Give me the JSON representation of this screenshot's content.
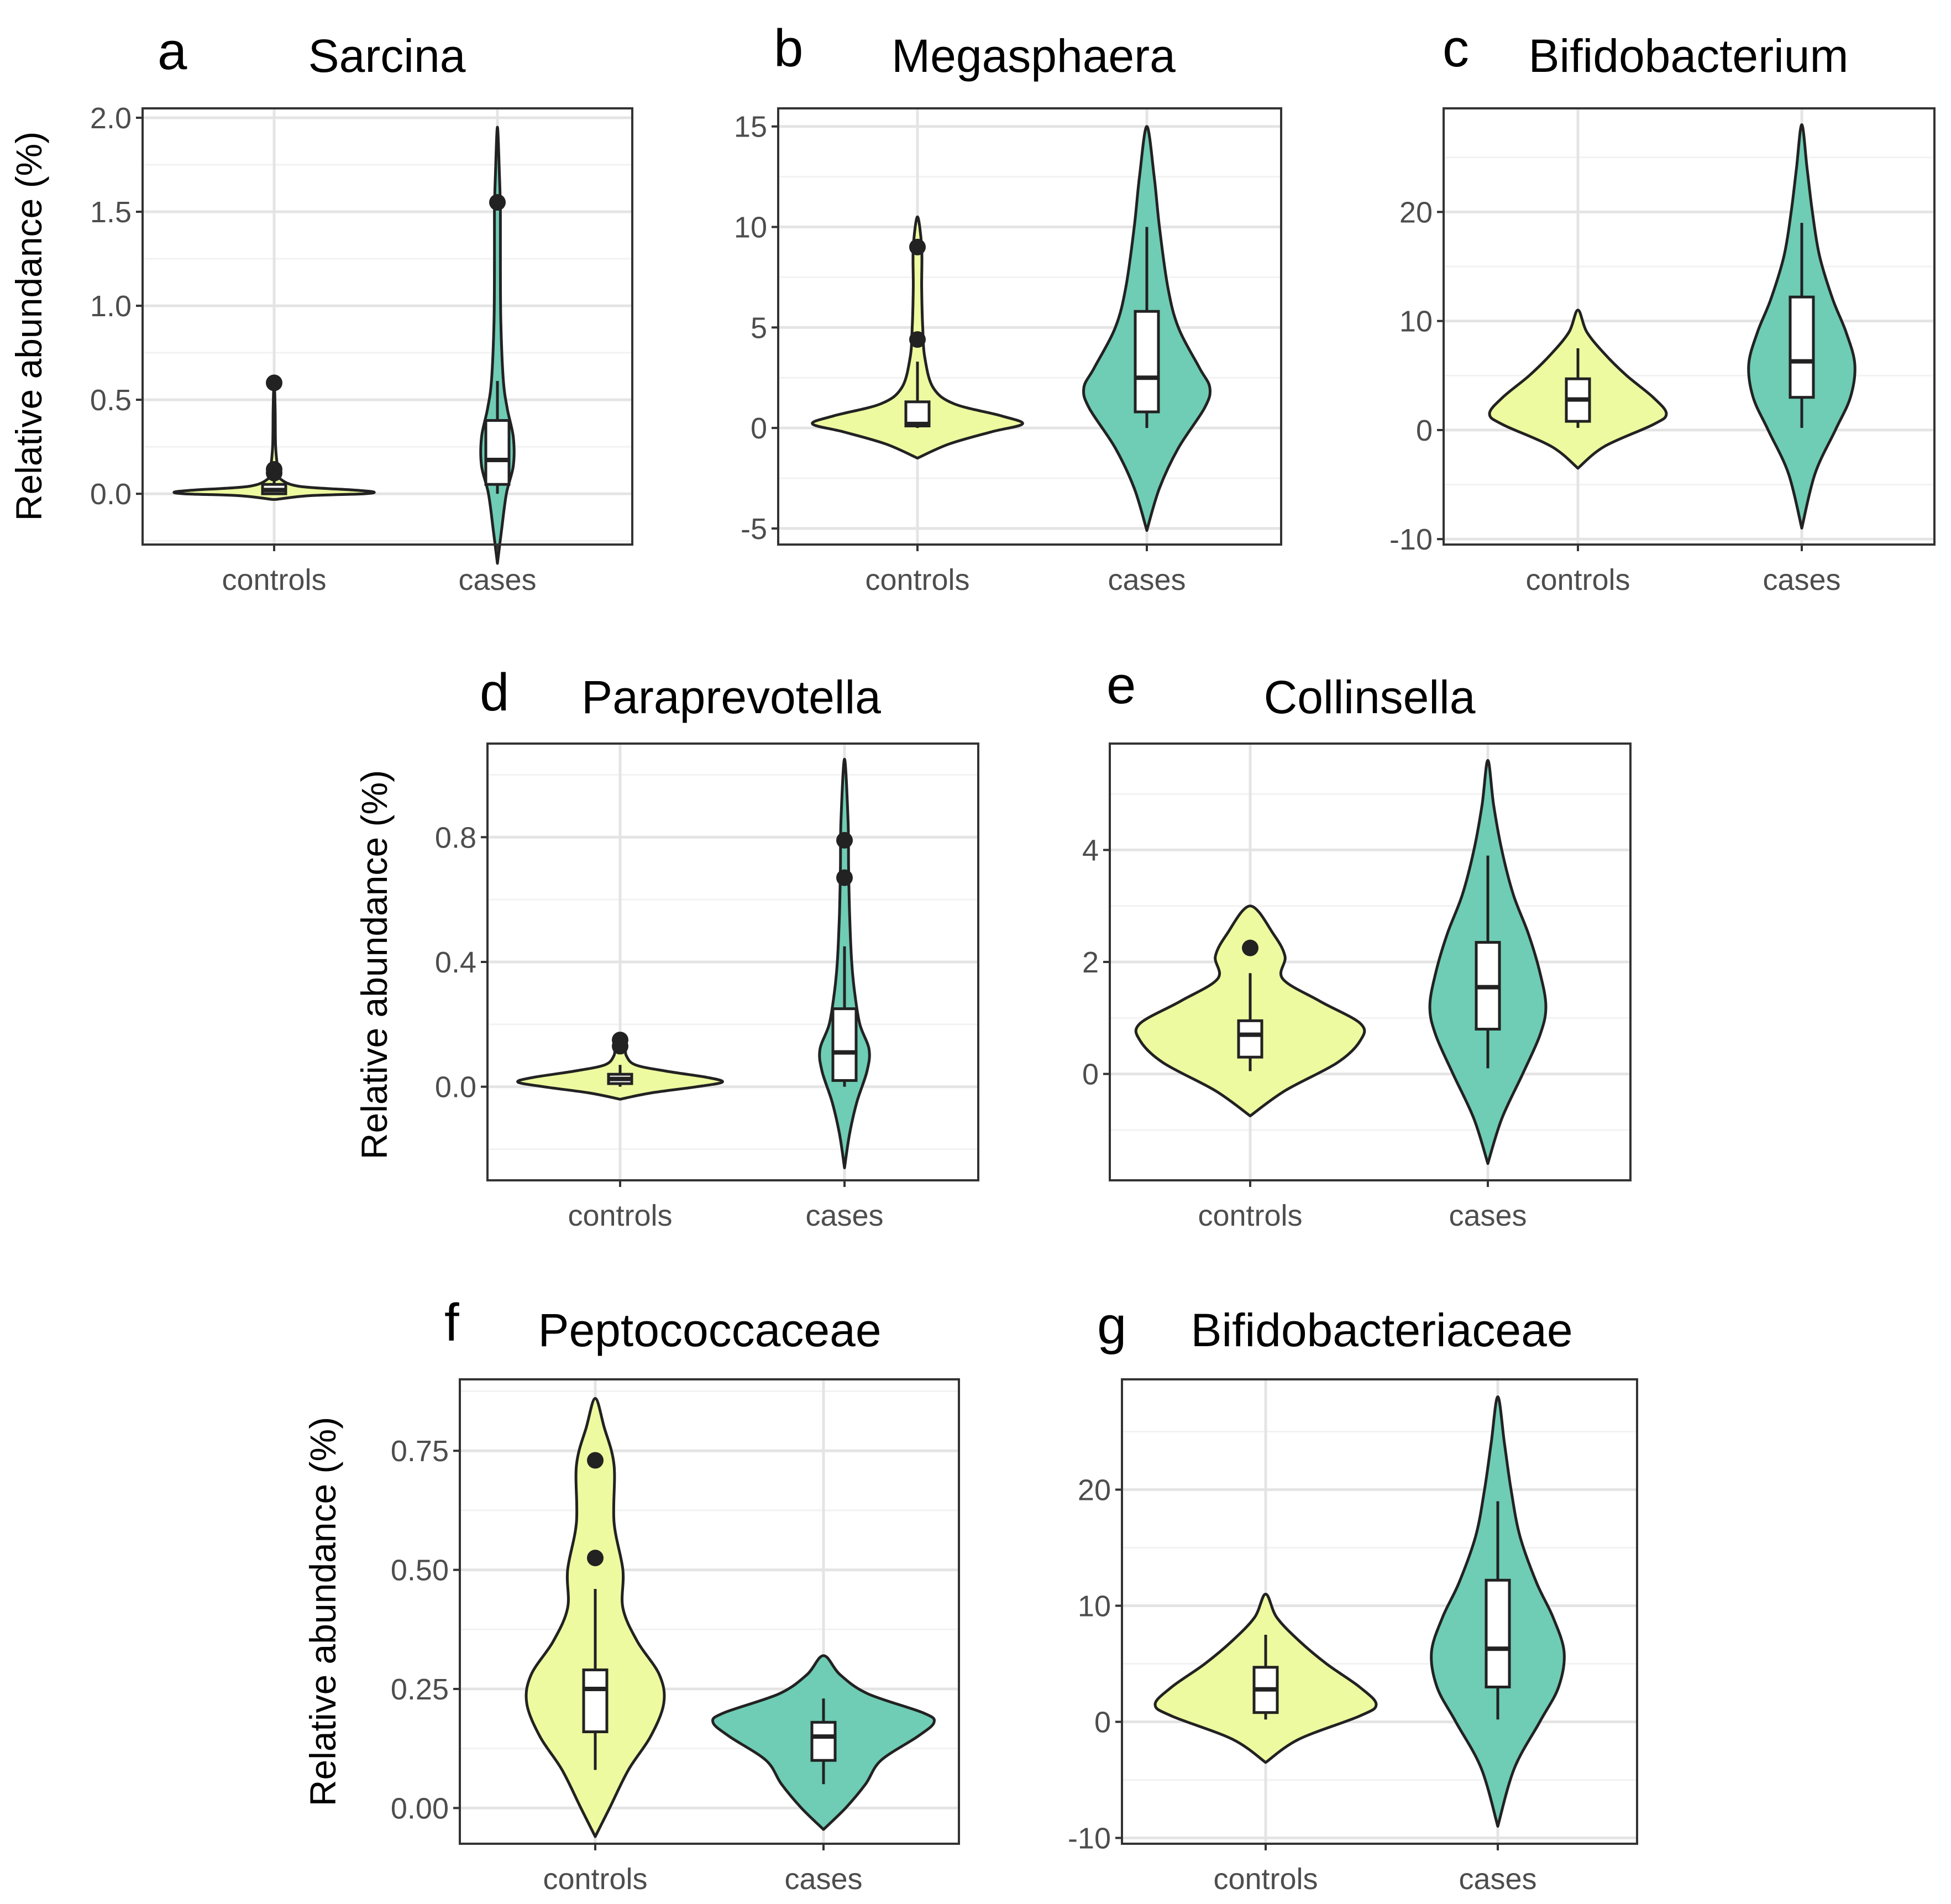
{
  "figure": {
    "colors": {
      "controls": "#eefaa0",
      "cases": "#6fccb5",
      "outline": "#222222",
      "grid_major": "#e4e4e4",
      "grid_minor": "#f2f2f2",
      "box_fill": "#ffffff"
    }
  },
  "chart_data": [
    {
      "type": "violin",
      "letter": "a",
      "title": "Sarcina",
      "ylabel": "Relative abundance (%)",
      "ylim": [
        -0.27,
        2.05
      ],
      "yticks": [
        0.0,
        0.5,
        1.0,
        1.5,
        2.0
      ],
      "ytick_labels": [
        "0.0",
        "0.5",
        "1.0",
        "1.5",
        "2.0"
      ],
      "categories": [
        "controls",
        "cases"
      ],
      "series": [
        {
          "name": "controls",
          "profile": [
            [
              -0.03,
              0.02
            ],
            [
              -0.01,
              0.35
            ],
            [
              0.0,
              0.9
            ],
            [
              0.01,
              1.0
            ],
            [
              0.02,
              0.8
            ],
            [
              0.04,
              0.25
            ],
            [
              0.08,
              0.06
            ],
            [
              0.12,
              0.04
            ],
            [
              0.25,
              0.015
            ],
            [
              0.45,
              0.01
            ],
            [
              0.6,
              0.0
            ]
          ],
          "box": {
            "q1": 0.0,
            "median": 0.02,
            "q3": 0.05,
            "whisker_low": 0.0,
            "whisker_high": 0.1
          },
          "outliers": [
            0.11,
            0.13,
            0.59
          ]
        },
        {
          "name": "cases",
          "profile": [
            [
              -0.37,
              0.0
            ],
            [
              -0.2,
              0.04
            ],
            [
              0.0,
              0.09
            ],
            [
              0.15,
              0.16
            ],
            [
              0.3,
              0.16
            ],
            [
              0.45,
              0.1
            ],
            [
              0.6,
              0.06
            ],
            [
              0.9,
              0.035
            ],
            [
              1.2,
              0.03
            ],
            [
              1.5,
              0.03
            ],
            [
              1.7,
              0.02
            ],
            [
              1.95,
              0.0
            ]
          ],
          "box": {
            "q1": 0.05,
            "median": 0.18,
            "q3": 0.39,
            "whisker_low": 0.0,
            "whisker_high": 0.6
          },
          "outliers": [
            1.55
          ]
        }
      ]
    },
    {
      "type": "violin",
      "letter": "b",
      "title": "Megasphaera",
      "ylabel": "",
      "ylim": [
        -5.8,
        15.9
      ],
      "yticks": [
        -5,
        0,
        5,
        10,
        15
      ],
      "ytick_labels": [
        "-5",
        "0",
        "5",
        "10",
        "15"
      ],
      "categories": [
        "controls",
        "cases"
      ],
      "series": [
        {
          "name": "controls",
          "profile": [
            [
              -1.5,
              0.0
            ],
            [
              -0.8,
              0.3
            ],
            [
              -0.2,
              0.7
            ],
            [
              0.2,
              1.0
            ],
            [
              0.6,
              0.8
            ],
            [
              1.2,
              0.35
            ],
            [
              2.0,
              0.15
            ],
            [
              3.5,
              0.07
            ],
            [
              5.0,
              0.05
            ],
            [
              7.0,
              0.04
            ],
            [
              9.0,
              0.04
            ],
            [
              10.5,
              0.0
            ]
          ],
          "box": {
            "q1": 0.1,
            "median": 0.2,
            "q3": 1.3,
            "whisker_low": 0.0,
            "whisker_high": 3.3
          },
          "outliers": [
            4.4,
            9.0
          ]
        },
        {
          "name": "cases",
          "profile": [
            [
              -5.1,
              0.0
            ],
            [
              -3.0,
              0.12
            ],
            [
              -1.0,
              0.3
            ],
            [
              1.0,
              0.55
            ],
            [
              2.0,
              0.6
            ],
            [
              3.0,
              0.5
            ],
            [
              5.0,
              0.3
            ],
            [
              7.0,
              0.2
            ],
            [
              10.0,
              0.12
            ],
            [
              12.5,
              0.07
            ],
            [
              15.0,
              0.0
            ]
          ],
          "box": {
            "q1": 0.8,
            "median": 2.5,
            "q3": 5.8,
            "whisker_low": 0.0,
            "whisker_high": 10.0
          },
          "outliers": []
        }
      ]
    },
    {
      "type": "violin",
      "letter": "c",
      "title": "Bifidobacterium",
      "ylabel": "",
      "ylim": [
        -10.5,
        29.5
      ],
      "yticks": [
        -10,
        0,
        10,
        20
      ],
      "ytick_labels": [
        "-10",
        "0",
        "10",
        "20"
      ],
      "categories": [
        "controls",
        "cases"
      ],
      "series": [
        {
          "name": "controls",
          "profile": [
            [
              -3.5,
              0.0
            ],
            [
              -1.5,
              0.3
            ],
            [
              0.5,
              0.85
            ],
            [
              1.5,
              1.0
            ],
            [
              3.0,
              0.85
            ],
            [
              5.0,
              0.55
            ],
            [
              7.0,
              0.3
            ],
            [
              9.0,
              0.1
            ],
            [
              11.0,
              0.0
            ]
          ],
          "box": {
            "q1": 0.8,
            "median": 2.8,
            "q3": 4.7,
            "whisker_low": 0.2,
            "whisker_high": 7.5
          },
          "outliers": []
        },
        {
          "name": "cases",
          "profile": [
            [
              -9.0,
              0.0
            ],
            [
              -4.0,
              0.15
            ],
            [
              0.0,
              0.38
            ],
            [
              3.0,
              0.55
            ],
            [
              6.0,
              0.6
            ],
            [
              9.0,
              0.5
            ],
            [
              12.0,
              0.35
            ],
            [
              16.0,
              0.2
            ],
            [
              20.0,
              0.12
            ],
            [
              24.0,
              0.06
            ],
            [
              28.0,
              0.0
            ]
          ],
          "box": {
            "q1": 3.0,
            "median": 6.3,
            "q3": 12.2,
            "whisker_low": 0.2,
            "whisker_high": 19.0
          },
          "outliers": []
        }
      ]
    },
    {
      "type": "violin",
      "letter": "d",
      "title": "Paraprevotella",
      "ylabel": "Relative abundance (%)",
      "ylim": [
        -0.3,
        1.1
      ],
      "yticks": [
        0.0,
        0.4,
        0.8
      ],
      "ytick_labels": [
        "0.0",
        "0.4",
        "0.8"
      ],
      "categories": [
        "controls",
        "cases"
      ],
      "series": [
        {
          "name": "controls",
          "profile": [
            [
              -0.04,
              0.0
            ],
            [
              -0.02,
              0.3
            ],
            [
              0.0,
              0.75
            ],
            [
              0.015,
              1.0
            ],
            [
              0.03,
              0.85
            ],
            [
              0.05,
              0.45
            ],
            [
              0.07,
              0.15
            ],
            [
              0.1,
              0.06
            ],
            [
              0.13,
              0.05
            ],
            [
              0.16,
              0.0
            ]
          ],
          "box": {
            "q1": 0.01,
            "median": 0.025,
            "q3": 0.04,
            "whisker_low": 0.0,
            "whisker_high": 0.07
          },
          "outliers": [
            0.13,
            0.15
          ]
        },
        {
          "name": "cases",
          "profile": [
            [
              -0.26,
              0.0
            ],
            [
              -0.15,
              0.05
            ],
            [
              -0.05,
              0.12
            ],
            [
              0.05,
              0.22
            ],
            [
              0.12,
              0.24
            ],
            [
              0.2,
              0.15
            ],
            [
              0.3,
              0.1
            ],
            [
              0.4,
              0.07
            ],
            [
              0.55,
              0.05
            ],
            [
              0.7,
              0.04
            ],
            [
              0.85,
              0.035
            ],
            [
              1.05,
              0.0
            ]
          ],
          "box": {
            "q1": 0.02,
            "median": 0.11,
            "q3": 0.25,
            "whisker_low": 0.0,
            "whisker_high": 0.45
          },
          "outliers": [
            0.67,
            0.79
          ]
        }
      ]
    },
    {
      "type": "violin",
      "letter": "e",
      "title": "Collinsella",
      "ylabel": "",
      "ylim": [
        -1.9,
        5.9
      ],
      "yticks": [
        0,
        2,
        4
      ],
      "ytick_labels": [
        "0",
        "2",
        "4"
      ],
      "categories": [
        "controls",
        "cases"
      ],
      "series": [
        {
          "name": "controls",
          "profile": [
            [
              -0.75,
              0.0
            ],
            [
              -0.3,
              0.3
            ],
            [
              0.2,
              0.75
            ],
            [
              0.6,
              0.95
            ],
            [
              0.9,
              0.95
            ],
            [
              1.3,
              0.6
            ],
            [
              1.7,
              0.28
            ],
            [
              2.1,
              0.3
            ],
            [
              2.5,
              0.2
            ],
            [
              3.0,
              0.0
            ]
          ],
          "box": {
            "q1": 0.3,
            "median": 0.7,
            "q3": 0.95,
            "whisker_low": 0.05,
            "whisker_high": 1.8
          },
          "outliers": [
            2.25
          ]
        },
        {
          "name": "cases",
          "profile": [
            [
              -1.6,
              0.0
            ],
            [
              -0.8,
              0.12
            ],
            [
              0.0,
              0.3
            ],
            [
              0.7,
              0.45
            ],
            [
              1.2,
              0.5
            ],
            [
              1.8,
              0.45
            ],
            [
              2.5,
              0.35
            ],
            [
              3.2,
              0.22
            ],
            [
              4.0,
              0.12
            ],
            [
              4.8,
              0.05
            ],
            [
              5.6,
              0.0
            ]
          ],
          "box": {
            "q1": 0.8,
            "median": 1.55,
            "q3": 2.35,
            "whisker_low": 0.1,
            "whisker_high": 3.9
          },
          "outliers": []
        }
      ]
    },
    {
      "type": "violin",
      "letter": "f",
      "title": "Peptococcaceae",
      "ylabel": "Relative abundance (%)",
      "ylim": [
        -0.075,
        0.9
      ],
      "yticks": [
        0.0,
        0.25,
        0.5,
        0.75
      ],
      "ytick_labels": [
        "0.00",
        "0.25",
        "0.50",
        "0.75"
      ],
      "categories": [
        "controls",
        "cases"
      ],
      "series": [
        {
          "name": "controls",
          "profile": [
            [
              -0.06,
              0.0
            ],
            [
              0.0,
              0.13
            ],
            [
              0.08,
              0.3
            ],
            [
              0.15,
              0.5
            ],
            [
              0.22,
              0.62
            ],
            [
              0.28,
              0.58
            ],
            [
              0.35,
              0.38
            ],
            [
              0.42,
              0.25
            ],
            [
              0.5,
              0.25
            ],
            [
              0.6,
              0.17
            ],
            [
              0.72,
              0.17
            ],
            [
              0.8,
              0.08
            ],
            [
              0.86,
              0.0
            ]
          ],
          "box": {
            "q1": 0.16,
            "median": 0.25,
            "q3": 0.29,
            "whisker_low": 0.08,
            "whisker_high": 0.46
          },
          "outliers": [
            0.525,
            0.73
          ]
        },
        {
          "name": "cases",
          "profile": [
            [
              -0.045,
              0.0
            ],
            [
              0.0,
              0.2
            ],
            [
              0.05,
              0.38
            ],
            [
              0.1,
              0.52
            ],
            [
              0.15,
              0.85
            ],
            [
              0.18,
              1.0
            ],
            [
              0.2,
              0.9
            ],
            [
              0.24,
              0.4
            ],
            [
              0.28,
              0.15
            ],
            [
              0.32,
              0.0
            ]
          ],
          "box": {
            "q1": 0.1,
            "median": 0.15,
            "q3": 0.18,
            "whisker_low": 0.05,
            "whisker_high": 0.23
          },
          "outliers": []
        }
      ]
    },
    {
      "type": "violin",
      "letter": "g",
      "title": "Bifidobacteriaceae",
      "ylabel": "",
      "ylim": [
        -10.5,
        29.5
      ],
      "yticks": [
        -10,
        0,
        10,
        20
      ],
      "ytick_labels": [
        "-10",
        "0",
        "10",
        "20"
      ],
      "categories": [
        "controls",
        "cases"
      ],
      "series": [
        {
          "name": "controls",
          "profile": [
            [
              -3.5,
              0.0
            ],
            [
              -1.5,
              0.3
            ],
            [
              0.5,
              0.85
            ],
            [
              1.5,
              1.0
            ],
            [
              3.0,
              0.85
            ],
            [
              5.0,
              0.55
            ],
            [
              7.0,
              0.3
            ],
            [
              9.0,
              0.1
            ],
            [
              11.0,
              0.0
            ]
          ],
          "box": {
            "q1": 0.8,
            "median": 2.8,
            "q3": 4.7,
            "whisker_low": 0.2,
            "whisker_high": 7.5
          },
          "outliers": []
        },
        {
          "name": "cases",
          "profile": [
            [
              -9.0,
              0.0
            ],
            [
              -4.0,
              0.15
            ],
            [
              0.0,
              0.38
            ],
            [
              3.0,
              0.55
            ],
            [
              6.0,
              0.6
            ],
            [
              9.0,
              0.5
            ],
            [
              12.0,
              0.35
            ],
            [
              16.0,
              0.2
            ],
            [
              20.0,
              0.12
            ],
            [
              24.0,
              0.06
            ],
            [
              28.0,
              0.0
            ]
          ],
          "box": {
            "q1": 3.0,
            "median": 6.3,
            "q3": 12.2,
            "whisker_low": 0.2,
            "whisker_high": 19.0
          },
          "outliers": []
        }
      ]
    }
  ]
}
